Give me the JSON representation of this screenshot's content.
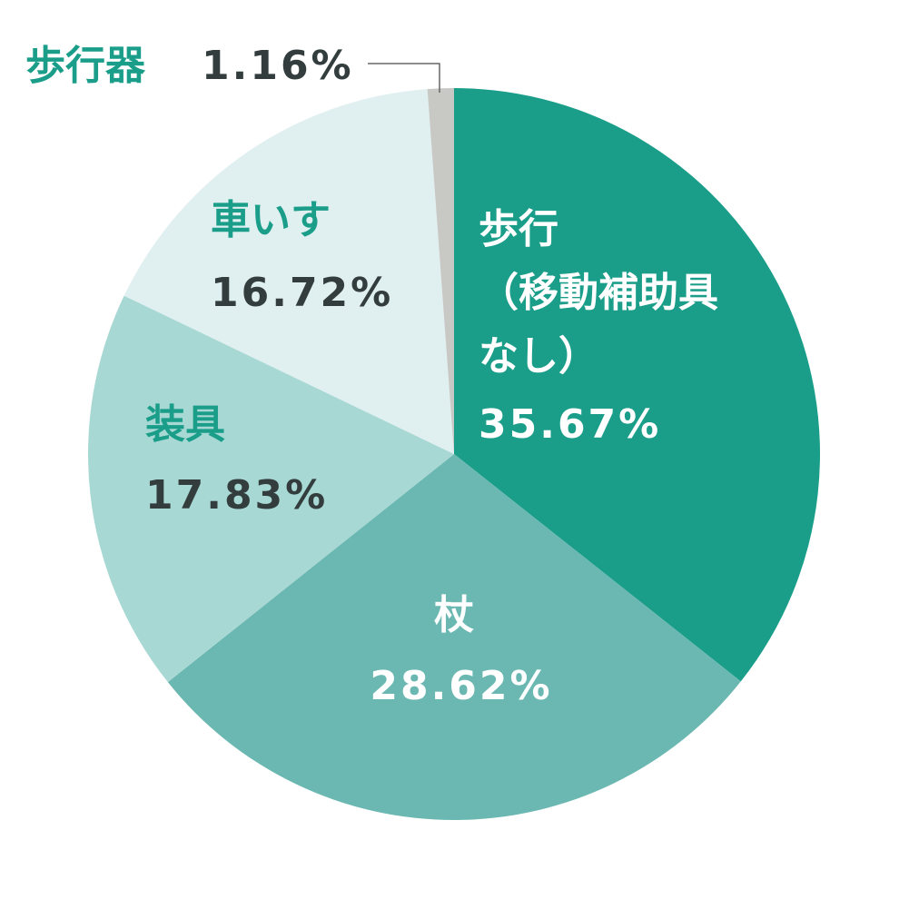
{
  "chart_data": {
    "type": "pie",
    "categories": [
      "歩行\n（移動補助具\nなし）",
      "杖",
      "装具",
      "車いす",
      "歩行器"
    ],
    "values": [
      35.67,
      28.62,
      17.83,
      16.72,
      1.16
    ],
    "value_labels": [
      "35.67%",
      "28.62%",
      "17.83%",
      "16.72%",
      "1.16%"
    ],
    "colors": [
      "#1a9e8a",
      "#6bb8b2",
      "#a8d8d4",
      "#e0eff0",
      "#c8c8c4"
    ]
  }
}
